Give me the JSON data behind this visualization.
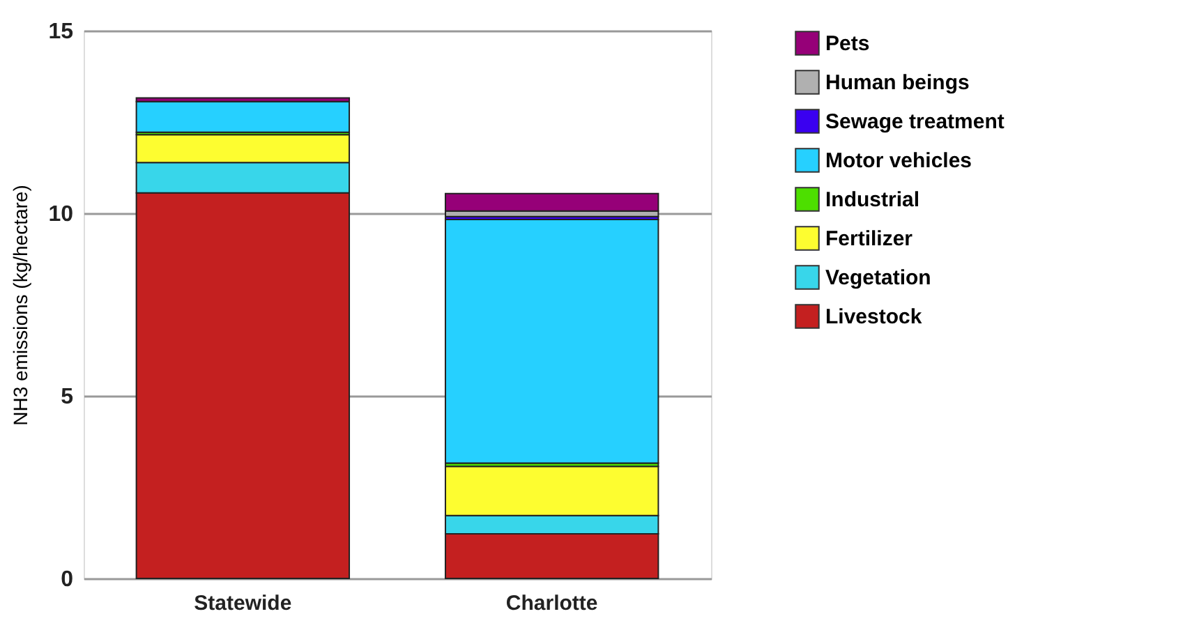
{
  "chart_data": {
    "type": "bar",
    "stacked": true,
    "ylabel": "NH3 emissions (kg/hectare)",
    "categories": [
      "Statewide",
      "Charlotte"
    ],
    "series": [
      {
        "name": "Livestock",
        "color": "#c42020",
        "values": [
          10.56,
          1.22
        ]
      },
      {
        "name": "Vegetation",
        "color": "#38d6ea",
        "values": [
          0.83,
          0.5
        ]
      },
      {
        "name": "Fertilizer",
        "color": "#fdfd30",
        "values": [
          0.76,
          1.35
        ]
      },
      {
        "name": "Industrial",
        "color": "#4ddf00",
        "values": [
          0.07,
          0.09
        ]
      },
      {
        "name": "Motor vehicles",
        "color": "#26d0ff",
        "values": [
          0.84,
          6.67
        ]
      },
      {
        "name": "Sewage treatment",
        "color": "#3a00f0",
        "values": [
          null,
          0.08
        ]
      },
      {
        "name": "Human beings",
        "color": "#b0b0b0",
        "values": [
          null,
          0.15
        ]
      },
      {
        "name": "Pets",
        "color": "#960078",
        "values": [
          0.1,
          0.48
        ]
      }
    ],
    "ylim": [
      0,
      15
    ],
    "yticks": [
      0,
      5,
      10,
      15
    ],
    "grid": "y",
    "legend": "right"
  }
}
